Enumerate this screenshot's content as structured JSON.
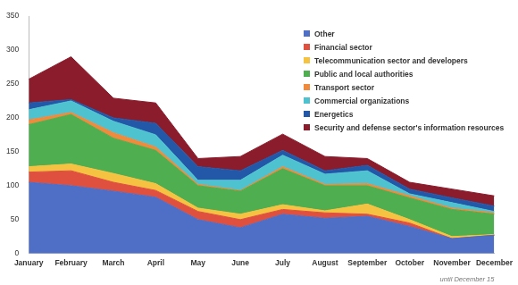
{
  "chart_data": {
    "type": "area",
    "stacked": true,
    "grid": false,
    "legend": "upper right",
    "categories": [
      "January",
      "February",
      "March",
      "April",
      "May",
      "June",
      "July",
      "August",
      "September",
      "October",
      "November",
      "December"
    ],
    "annotations": [
      "until December 15"
    ],
    "ylim": [
      0,
      350
    ],
    "yticks": [
      0,
      50,
      100,
      150,
      200,
      250,
      300,
      350
    ],
    "series": [
      {
        "name": "Other",
        "color": "#4f6ec6",
        "values": [
          105,
          100,
          92,
          83,
          50,
          38,
          58,
          52,
          55,
          40,
          22,
          27
        ]
      },
      {
        "name": "Financial sector",
        "color": "#e0503f",
        "values": [
          15,
          22,
          13,
          10,
          12,
          12,
          7,
          8,
          3,
          5,
          0,
          0
        ]
      },
      {
        "name": "Telecommunication sector and developers",
        "color": "#f5c242",
        "values": [
          8,
          10,
          13,
          10,
          5,
          8,
          7,
          3,
          15,
          5,
          3,
          1
        ]
      },
      {
        "name": "Public and local authorities",
        "color": "#4fae4f",
        "values": [
          62,
          73,
          52,
          49,
          33,
          34,
          53,
          37,
          27,
          32,
          40,
          30
        ]
      },
      {
        "name": "Transport sector",
        "color": "#f08a3c",
        "values": [
          7,
          3,
          8,
          5,
          2,
          1,
          3,
          2,
          3,
          3,
          2,
          2
        ]
      },
      {
        "name": "Commercial organizations",
        "color": "#4fc2d0",
        "values": [
          15,
          17,
          17,
          18,
          6,
          15,
          17,
          15,
          19,
          3,
          8,
          2
        ]
      },
      {
        "name": "Energetics",
        "color": "#2358a8",
        "values": [
          10,
          2,
          5,
          17,
          20,
          14,
          7,
          5,
          8,
          7,
          7,
          8
        ]
      },
      {
        "name": "Security and defense sector's information resources",
        "color": "#8b1c2c",
        "values": [
          35,
          63,
          29,
          30,
          12,
          21,
          24,
          21,
          10,
          10,
          13,
          15
        ]
      }
    ]
  }
}
